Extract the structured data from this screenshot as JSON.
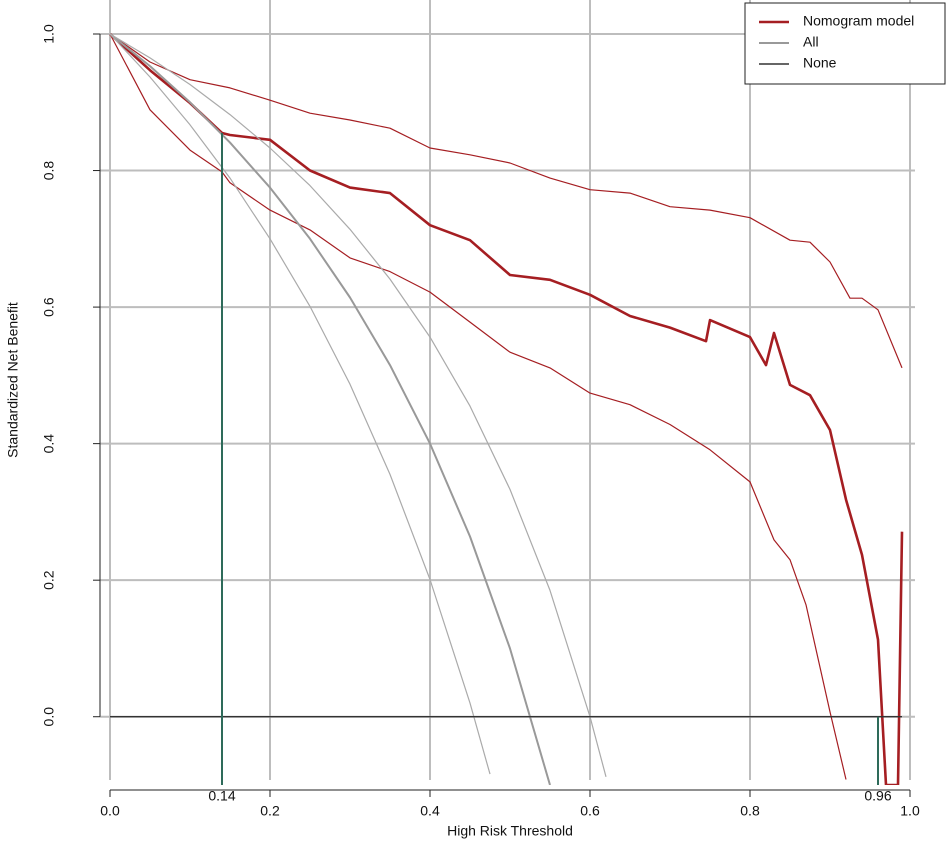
{
  "chart_data": {
    "type": "line",
    "xlabel": "High Risk Threshold",
    "ylabel": "Standardized Net Benefit",
    "xlim": [
      0,
      1
    ],
    "ylim": [
      -0.1,
      1
    ],
    "xticks": [
      {
        "value": 0,
        "label": "0.0"
      },
      0.2,
      0.4,
      0.6,
      0.8,
      {
        "value": 1,
        "label": "1.0"
      }
    ],
    "yticks": [
      {
        "value": 0,
        "label": "0.0"
      },
      0.2,
      0.4,
      0.6,
      0.8,
      {
        "value": 1,
        "label": "1.0"
      }
    ],
    "grid": true,
    "legend_position": "top-right",
    "threshold_markers": [
      {
        "x": 0.14,
        "y": 0.855,
        "color": "#2e6b5a"
      },
      {
        "x": 0.96,
        "y": 0,
        "color": "#2e6b5a"
      }
    ],
    "series": [
      {
        "name": "Nomogram model",
        "color": "#a51e22",
        "linewidth": 2.6,
        "x": [
          0,
          0.05,
          0.1,
          0.14,
          0.15,
          0.2,
          0.25,
          0.3,
          0.35,
          0.4,
          0.45,
          0.5,
          0.55,
          0.6,
          0.65,
          0.7,
          0.745,
          0.75,
          0.8,
          0.82,
          0.83,
          0.85,
          0.875,
          0.9,
          0.92,
          0.94,
          0.96,
          0.97,
          0.985,
          0.99
        ],
        "values": [
          1,
          0.947,
          0.899,
          0.855,
          0.852,
          0.845,
          0.8,
          0.775,
          0.767,
          0.72,
          0.698,
          0.647,
          0.64,
          0.618,
          0.587,
          0.57,
          0.55,
          0.581,
          0.556,
          0.515,
          0.562,
          0.486,
          0.471,
          0.42,
          0.318,
          0.237,
          0.113,
          -0.1,
          -0.1,
          0.271
        ]
      },
      {
        "color": "#a51e22",
        "linewidth": 1.2,
        "x": [
          0,
          0.05,
          0.1,
          0.15,
          0.2,
          0.25,
          0.3,
          0.35,
          0.4,
          0.45,
          0.5,
          0.55,
          0.6,
          0.65,
          0.7,
          0.75,
          0.8,
          0.85,
          0.875,
          0.9,
          0.925,
          0.94,
          0.96,
          0.99
        ],
        "values": [
          1,
          0.959,
          0.933,
          0.921,
          0.903,
          0.884,
          0.874,
          0.862,
          0.833,
          0.823,
          0.811,
          0.789,
          0.772,
          0.767,
          0.747,
          0.742,
          0.731,
          0.698,
          0.695,
          0.666,
          0.613,
          0.613,
          0.596,
          0.511
        ]
      },
      {
        "color": "#a51e22",
        "linewidth": 1.2,
        "x": [
          0,
          0.05,
          0.1,
          0.14,
          0.15,
          0.2,
          0.25,
          0.3,
          0.35,
          0.4,
          0.45,
          0.5,
          0.55,
          0.6,
          0.65,
          0.7,
          0.75,
          0.8,
          0.83,
          0.85,
          0.87,
          0.9,
          0.92
        ],
        "values": [
          1,
          0.889,
          0.83,
          0.798,
          0.782,
          0.742,
          0.713,
          0.672,
          0.652,
          0.622,
          0.578,
          0.534,
          0.511,
          0.474,
          0.457,
          0.428,
          0.391,
          0.344,
          0.259,
          0.23,
          0.164,
          0.007,
          -0.092
        ]
      },
      {
        "name": "All",
        "color": "#999999",
        "linewidth": 2,
        "x": [
          0,
          0.05,
          0.1,
          0.15,
          0.2,
          0.25,
          0.3,
          0.35,
          0.4,
          0.45,
          0.5,
          0.55
        ],
        "values": [
          1,
          0.953,
          0.9,
          0.841,
          0.775,
          0.7,
          0.614,
          0.515,
          0.4,
          0.264,
          0.1,
          -0.1
        ]
      },
      {
        "color": "#aaaaaa",
        "linewidth": 1.2,
        "x": [
          0,
          0.05,
          0.1,
          0.15,
          0.2,
          0.25,
          0.3,
          0.35,
          0.4,
          0.45,
          0.5,
          0.55,
          0.6,
          0.62
        ],
        "values": [
          1,
          0.965,
          0.926,
          0.882,
          0.833,
          0.778,
          0.714,
          0.641,
          0.556,
          0.455,
          0.333,
          0.185,
          0,
          -0.088
        ]
      },
      {
        "color": "#aaaaaa",
        "linewidth": 1.2,
        "x": [
          0,
          0.05,
          0.1,
          0.15,
          0.2,
          0.25,
          0.3,
          0.35,
          0.4,
          0.45,
          0.475
        ],
        "values": [
          1,
          0.937,
          0.867,
          0.789,
          0.7,
          0.601,
          0.487,
          0.355,
          0.201,
          0.02,
          -0.084
        ]
      },
      {
        "name": "None",
        "color": "#333333",
        "linewidth": 1.4,
        "x": [
          0,
          0.99
        ],
        "values": [
          0,
          0
        ]
      }
    ]
  }
}
